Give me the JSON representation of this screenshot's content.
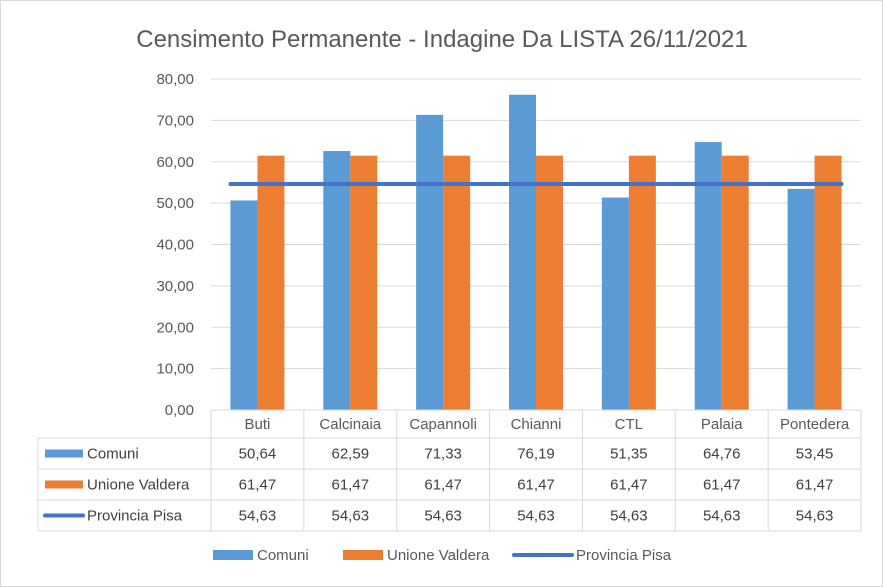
{
  "chart_data": {
    "type": "bar",
    "title": "Censimento Permanente - Indagine Da LISTA 26/11/2021",
    "categories": [
      "Buti",
      "Calcinaia",
      "Capannoli",
      "Chianni",
      "CTL",
      "Palaia",
      "Pontedera"
    ],
    "series": [
      {
        "name": "Comuni",
        "kind": "bar",
        "color": "#5b9bd5",
        "values": [
          50.64,
          62.59,
          71.33,
          76.19,
          51.35,
          64.76,
          53.45
        ],
        "labels": [
          "50,64",
          "62,59",
          "71,33",
          "76,19",
          "51,35",
          "64,76",
          "53,45"
        ]
      },
      {
        "name": "Unione Valdera",
        "kind": "bar",
        "color": "#ed7d31",
        "values": [
          61.47,
          61.47,
          61.47,
          61.47,
          61.47,
          61.47,
          61.47
        ],
        "labels": [
          "61,47",
          "61,47",
          "61,47",
          "61,47",
          "61,47",
          "61,47",
          "61,47"
        ]
      },
      {
        "name": "Provincia Pisa",
        "kind": "line",
        "color": "#4472c4",
        "values": [
          54.63,
          54.63,
          54.63,
          54.63,
          54.63,
          54.63,
          54.63
        ],
        "labels": [
          "54,63",
          "54,63",
          "54,63",
          "54,63",
          "54,63",
          "54,63",
          "54,63"
        ]
      }
    ],
    "ylim": [
      0,
      80
    ],
    "yticks": [
      "0,00",
      "10,00",
      "20,00",
      "30,00",
      "40,00",
      "50,00",
      "60,00",
      "70,00",
      "80,00"
    ],
    "grid": true,
    "legend": "bottom",
    "data_table": true
  }
}
